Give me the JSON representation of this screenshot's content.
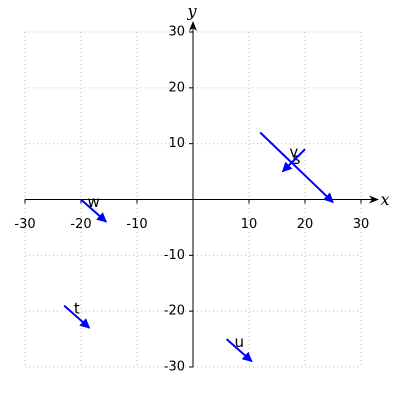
{
  "chart_data": {
    "type": "vector",
    "xlabel": "x",
    "ylabel": "y",
    "xlim": [
      -30,
      30
    ],
    "ylim": [
      -30,
      30
    ],
    "xticks": [
      -30,
      -20,
      -10,
      10,
      20,
      30
    ],
    "yticks": [
      -30,
      -20,
      -10,
      10,
      20,
      30
    ],
    "grid": true,
    "color": "#0000ff",
    "label_color": "#ff0000",
    "series": [
      {
        "name": "s",
        "x": [
          12,
          25
        ],
        "y": [
          12,
          -0.5
        ]
      },
      {
        "name": "v",
        "x": [
          20,
          16
        ],
        "y": [
          9,
          5
        ]
      },
      {
        "name": "w",
        "x": [
          -20,
          -15.5
        ],
        "y": [
          0,
          -4
        ]
      },
      {
        "name": "t",
        "x": [
          -23,
          -18.5
        ],
        "y": [
          -19,
          -23
        ]
      },
      {
        "name": "u",
        "x": [
          6,
          10.5
        ],
        "y": [
          -25,
          -29
        ]
      }
    ]
  }
}
